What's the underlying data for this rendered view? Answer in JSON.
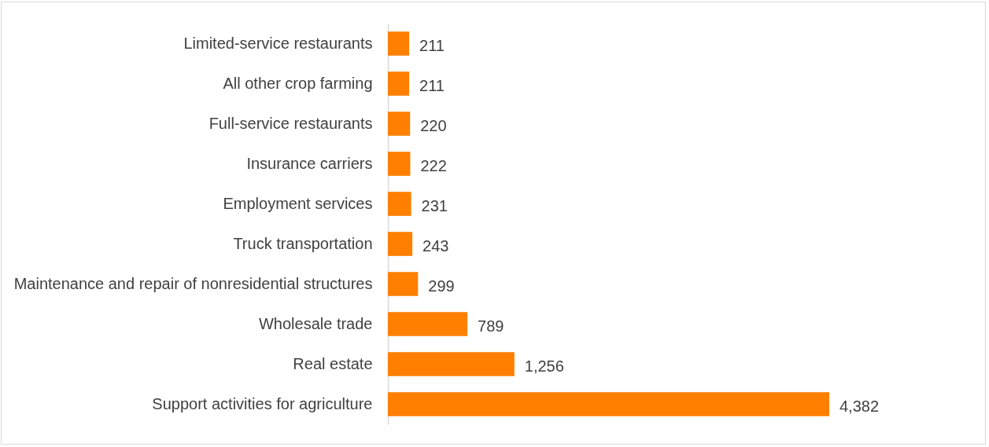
{
  "chart_data": {
    "type": "bar",
    "orientation": "horizontal",
    "categories": [
      "Limited-service restaurants",
      "All other crop farming",
      "Full-service restaurants",
      "Insurance carriers",
      "Employment services",
      "Truck transportation",
      "Maintenance and repair of nonresidential structures",
      "Wholesale trade",
      "Real estate",
      "Support activities for agriculture"
    ],
    "values": [
      211,
      211,
      220,
      222,
      231,
      243,
      299,
      789,
      1256,
      4382
    ],
    "value_labels": [
      "211",
      "211",
      "220",
      "222",
      "231",
      "243",
      "299",
      "789",
      "1,256",
      "4,382"
    ],
    "color": "#ff7f00"
  }
}
